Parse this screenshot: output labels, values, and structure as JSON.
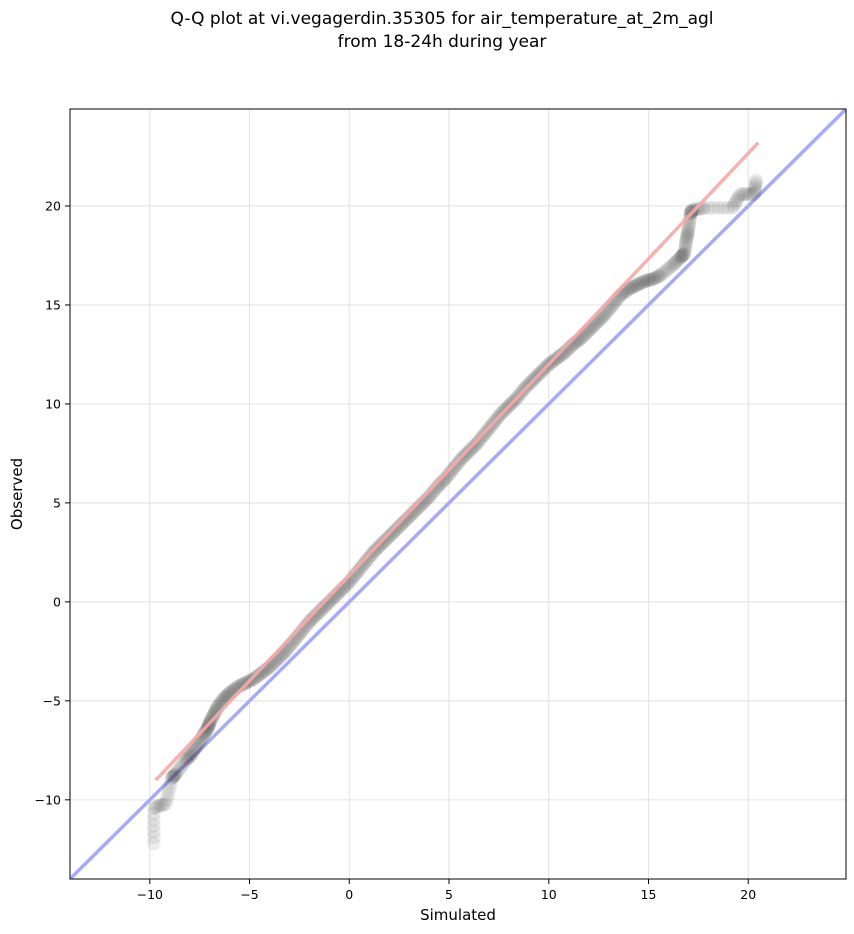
{
  "chart_data": {
    "type": "scatter",
    "title_line1": "Q-Q plot at vi.vegagerdin.35305 for air_temperature_at_2m_agl",
    "title_line2": "from 18-24h during year",
    "xlabel": "Simulated",
    "ylabel": "Observed",
    "xlim": [
      -14.0,
      24.9
    ],
    "ylim": [
      -14.0,
      24.9
    ],
    "xticks": [
      -10,
      -5,
      0,
      5,
      10,
      15,
      20
    ],
    "yticks": [
      -10,
      -5,
      0,
      5,
      10,
      15,
      20
    ],
    "xtick_labels": [
      "−10",
      "−5",
      "0",
      "5",
      "10",
      "15",
      "20"
    ],
    "ytick_labels": [
      "−10",
      "−5",
      "0",
      "5",
      "10",
      "15",
      "20"
    ],
    "grid": true,
    "identity_line": {
      "color": "#a8aaf5",
      "from": [
        -14.0,
        -14.0
      ],
      "to": [
        24.9,
        24.9
      ]
    },
    "fit_line": {
      "color": "#f5a8a8",
      "from": [
        -9.7,
        -9.0
      ],
      "to": [
        20.5,
        23.2
      ]
    },
    "points_color": "#222222",
    "points": [
      [
        -9.8,
        -12.2
      ],
      [
        -9.8,
        -10.4
      ],
      [
        -9.2,
        -10.2
      ],
      [
        -8.9,
        -8.9
      ],
      [
        -8.7,
        -8.7
      ],
      [
        -8.2,
        -8.0
      ],
      [
        -7.9,
        -7.7
      ],
      [
        -7.6,
        -7.2
      ],
      [
        -7.3,
        -6.7
      ],
      [
        -7.1,
        -6.4
      ],
      [
        -7.0,
        -6.1
      ],
      [
        -6.8,
        -5.7
      ],
      [
        -6.6,
        -5.3
      ],
      [
        -6.3,
        -4.9
      ],
      [
        -6.0,
        -4.6
      ],
      [
        -5.6,
        -4.3
      ],
      [
        -5.2,
        -4.1
      ],
      [
        -4.8,
        -3.9
      ],
      [
        -4.4,
        -3.6
      ],
      [
        -4.0,
        -3.3
      ],
      [
        -3.6,
        -2.9
      ],
      [
        -3.2,
        -2.5
      ],
      [
        -2.8,
        -2.0
      ],
      [
        -2.4,
        -1.5
      ],
      [
        -2.0,
        -1.0
      ],
      [
        -1.6,
        -0.6
      ],
      [
        -1.2,
        -0.2
      ],
      [
        -0.8,
        0.2
      ],
      [
        -0.4,
        0.6
      ],
      [
        0.0,
        1.0
      ],
      [
        0.4,
        1.5
      ],
      [
        0.8,
        2.0
      ],
      [
        1.2,
        2.5
      ],
      [
        1.6,
        2.9
      ],
      [
        2.0,
        3.3
      ],
      [
        2.4,
        3.7
      ],
      [
        2.8,
        4.1
      ],
      [
        3.2,
        4.5
      ],
      [
        3.6,
        4.9
      ],
      [
        4.0,
        5.3
      ],
      [
        4.4,
        5.8
      ],
      [
        4.8,
        6.2
      ],
      [
        5.2,
        6.7
      ],
      [
        5.6,
        7.2
      ],
      [
        6.0,
        7.6
      ],
      [
        6.4,
        8.0
      ],
      [
        6.8,
        8.5
      ],
      [
        7.2,
        9.0
      ],
      [
        7.6,
        9.5
      ],
      [
        8.0,
        9.9
      ],
      [
        8.4,
        10.3
      ],
      [
        8.8,
        10.8
      ],
      [
        9.2,
        11.2
      ],
      [
        9.6,
        11.6
      ],
      [
        10.0,
        12.0
      ],
      [
        10.4,
        12.3
      ],
      [
        10.8,
        12.6
      ],
      [
        11.2,
        13.0
      ],
      [
        11.6,
        13.3
      ],
      [
        12.0,
        13.7
      ],
      [
        12.4,
        14.1
      ],
      [
        12.8,
        14.5
      ],
      [
        13.2,
        15.0
      ],
      [
        13.6,
        15.5
      ],
      [
        14.0,
        15.8
      ],
      [
        14.4,
        16.0
      ],
      [
        14.8,
        16.2
      ],
      [
        15.2,
        16.3
      ],
      [
        15.6,
        16.5
      ],
      [
        16.2,
        17.0
      ],
      [
        16.6,
        17.4
      ],
      [
        16.8,
        17.6
      ],
      [
        16.9,
        18.3
      ],
      [
        17.0,
        18.8
      ],
      [
        17.1,
        19.6
      ],
      [
        17.2,
        19.8
      ],
      [
        17.8,
        19.9
      ],
      [
        19.2,
        19.9
      ],
      [
        19.6,
        20.6
      ],
      [
        20.3,
        20.6
      ],
      [
        20.4,
        21.3
      ]
    ]
  }
}
